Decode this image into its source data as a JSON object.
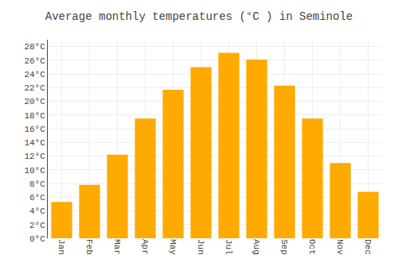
{
  "chart_data": {
    "type": "bar",
    "title": "Average monthly temperatures (°C ) in Seminole",
    "categories": [
      "Jan",
      "Feb",
      "Mar",
      "Apr",
      "May",
      "Jun",
      "Jul",
      "Aug",
      "Sep",
      "Oct",
      "Nov",
      "Dec"
    ],
    "values": [
      5.3,
      7.8,
      12.2,
      17.5,
      21.7,
      25.0,
      27.1,
      26.1,
      22.3,
      17.5,
      11.0,
      6.8
    ],
    "color": "#FFAA00",
    "ylim": [
      0,
      29
    ],
    "yticks": [
      {
        "value": 0,
        "label": "0°C"
      },
      {
        "value": 2,
        "label": "2°C"
      },
      {
        "value": 4,
        "label": "4°C"
      },
      {
        "value": 6,
        "label": "6°C"
      },
      {
        "value": 8,
        "label": "8°C"
      },
      {
        "value": 10,
        "label": "10°C"
      },
      {
        "value": 12,
        "label": "12°C"
      },
      {
        "value": 14,
        "label": "14°C"
      },
      {
        "value": 16,
        "label": "16°C"
      },
      {
        "value": 18,
        "label": "18°C"
      },
      {
        "value": 20,
        "label": "20°C"
      },
      {
        "value": 22,
        "label": "22°C"
      },
      {
        "value": 24,
        "label": "24°C"
      },
      {
        "value": 26,
        "label": "26°C"
      },
      {
        "value": 28,
        "label": "28°C"
      }
    ],
    "grid": true
  }
}
